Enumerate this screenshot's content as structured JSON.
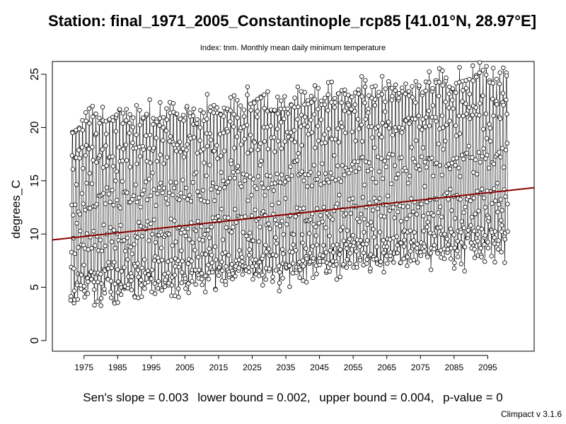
{
  "chart_data": {
    "type": "line",
    "title": "Station: final_1971_2005_Constantinople_rcp85 [41.01°N, 28.97°E]",
    "subtitle": "Index: tnm. Monthly mean daily minimum temperature",
    "xlabel": "",
    "ylabel": "degrees_C",
    "xlim": [
      1965.6,
      2108.8
    ],
    "ylim": [
      -1.0,
      26.2
    ],
    "x_ticks": [
      1975,
      1985,
      1995,
      2005,
      2015,
      2025,
      2035,
      2045,
      2055,
      2065,
      2075,
      2085,
      2095
    ],
    "y_ticks": [
      0,
      5,
      10,
      15,
      20,
      25
    ],
    "grid": false,
    "legend": "none",
    "marker": "open-circle",
    "colors": {
      "series": "#000000",
      "trend": "#8b0000"
    },
    "series": [
      {
        "first_year": 1971,
        "last_year": 2100,
        "monthly_climatology_start": [
          4.5,
          4.3,
          5.6,
          8.7,
          13.3,
          17.8,
          20.1,
          20.3,
          16.7,
          12.9,
          9.3,
          6.2
        ],
        "warming_total": 4.5
      }
    ],
    "trend_line": {
      "x": [
        1965.6,
        2108.8
      ],
      "y": [
        9.45,
        14.35
      ]
    },
    "stats": {
      "sens_slope": "Sen's slope = 0.003",
      "lower_bound": "lower bound = 0.002,",
      "upper_bound": "upper bound = 0.004,",
      "p_value": "p-value = 0"
    }
  },
  "credit": "Climpact v 3.1.6"
}
